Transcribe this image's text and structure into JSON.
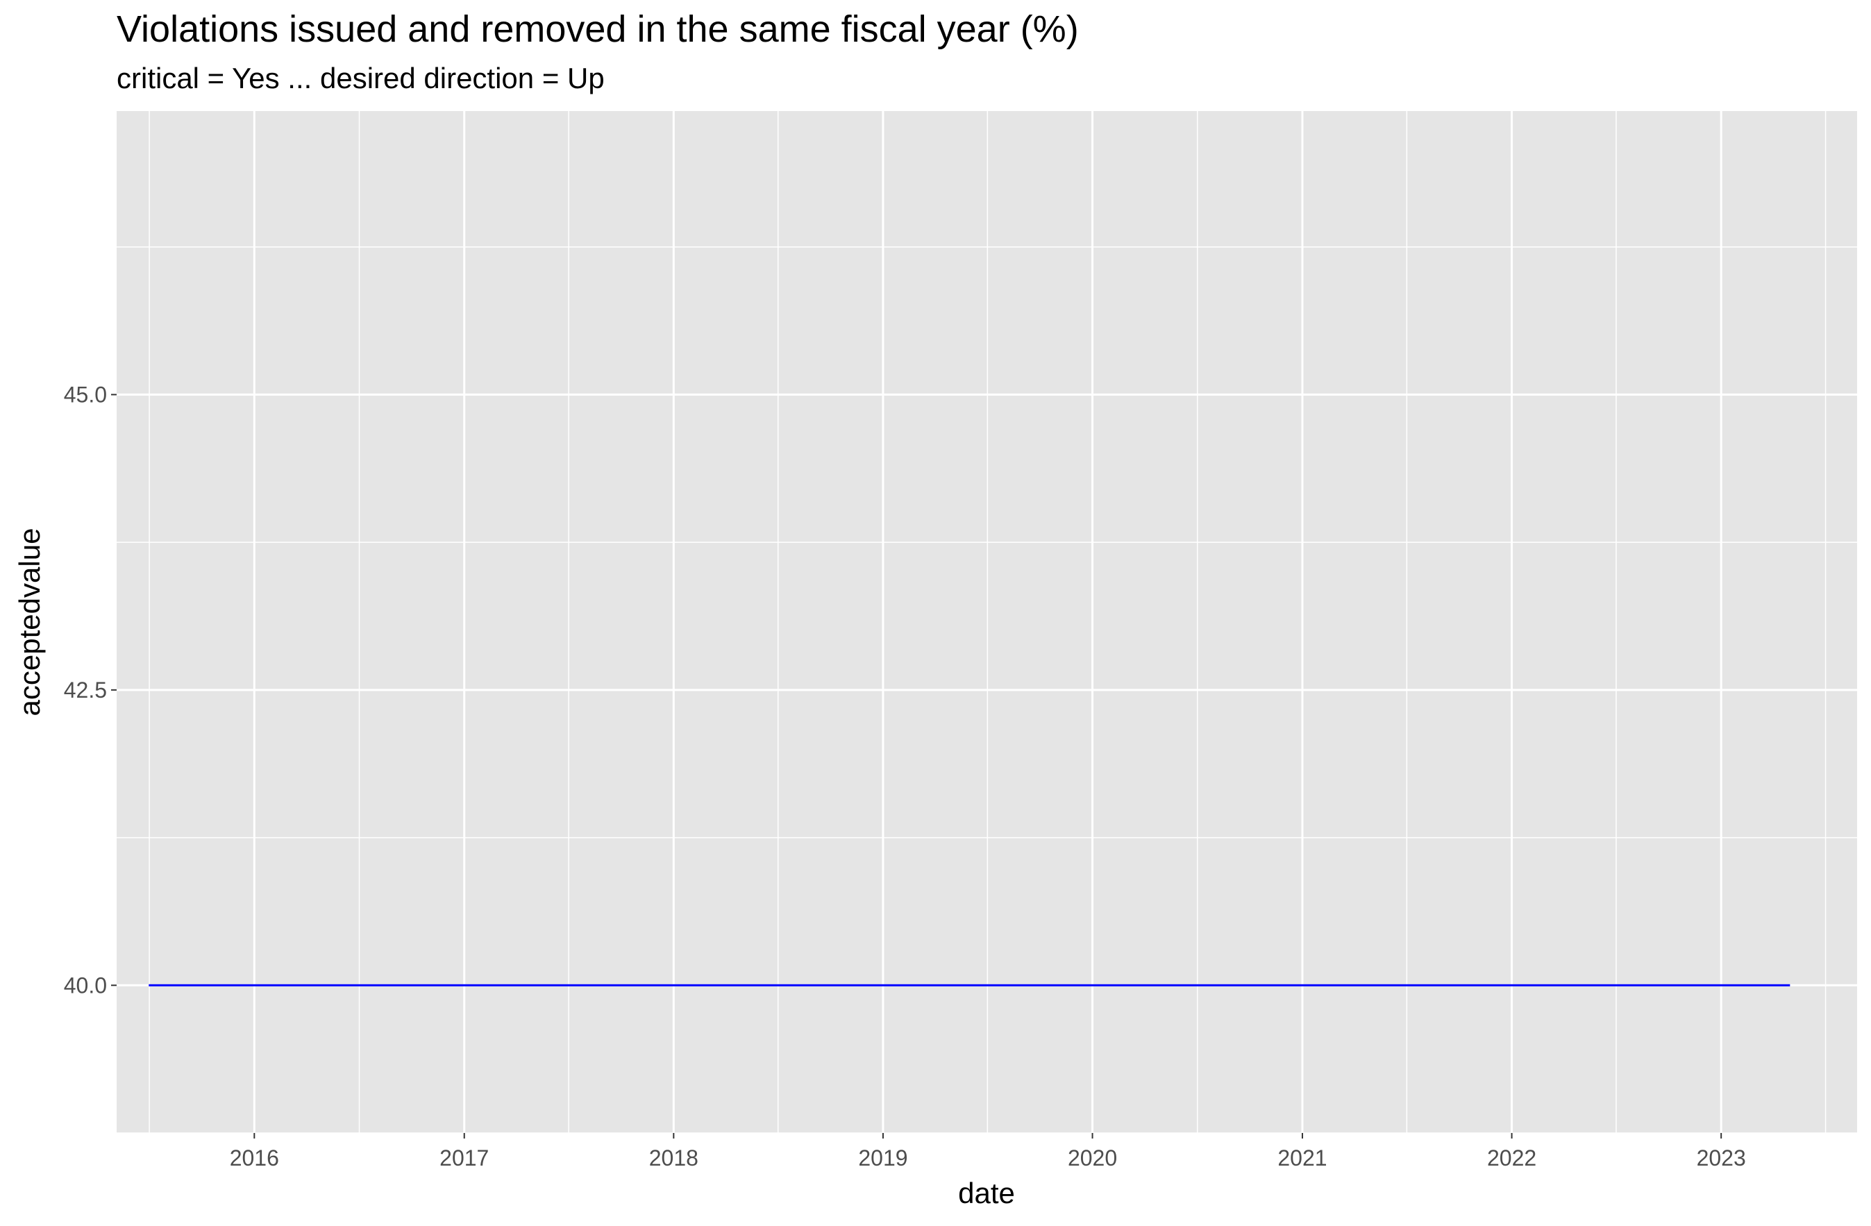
{
  "chart_data": {
    "type": "line",
    "title": "Violations issued and removed in the same fiscal year (%)",
    "subtitle": "critical = Yes ... desired direction = Up",
    "xlabel": "date",
    "ylabel": "acceptedvalue",
    "x_tick_labels": [
      "2016",
      "2017",
      "2018",
      "2019",
      "2020",
      "2021",
      "2022",
      "2023"
    ],
    "y_tick_labels": [
      "40.0",
      "42.5",
      "45.0"
    ],
    "y_ticks": [
      40.0,
      42.5,
      45.0
    ],
    "xlim": [
      "2015-05-06",
      "2023-08-26"
    ],
    "ylim": [
      38.75,
      47.4
    ],
    "grid": true,
    "background": "#e5e5e5",
    "series": [
      {
        "color": "#0000ff",
        "points": [
          {
            "x": "2015-07-01",
            "y": 40.0
          },
          {
            "x": "2023-05-01",
            "y": 40.0
          }
        ]
      }
    ]
  }
}
